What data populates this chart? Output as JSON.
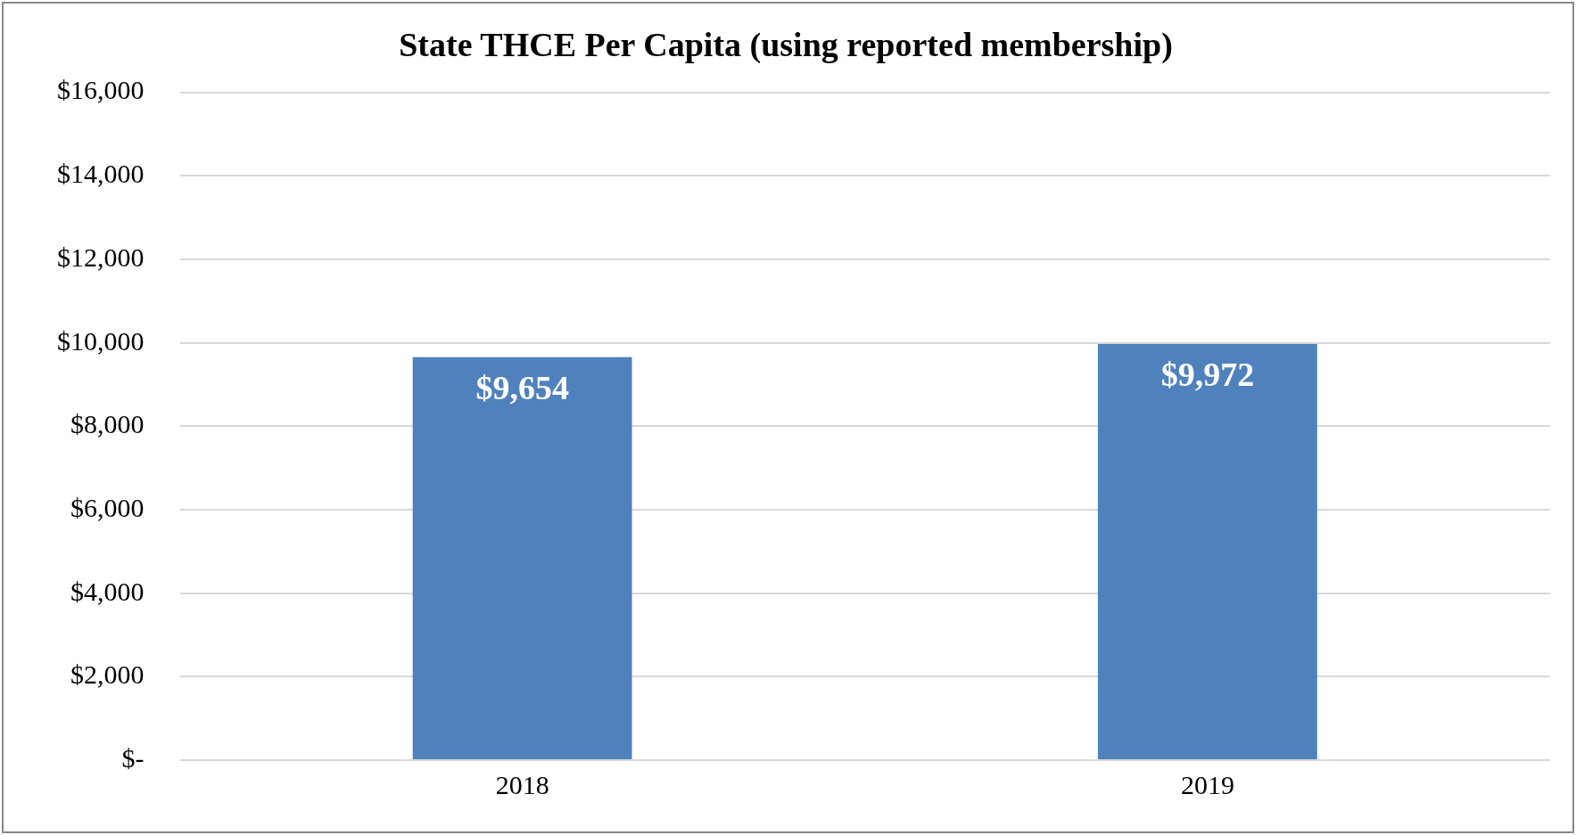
{
  "chart_data": {
    "type": "bar",
    "title": "State THCE Per Capita (using reported membership)",
    "categories": [
      "2018",
      "2019"
    ],
    "values": [
      9654,
      9972
    ],
    "value_labels": [
      "$9,654",
      "$9,972"
    ],
    "color": "#4f81bd",
    "ylim": [
      0,
      16000
    ],
    "yticks": [
      {
        "value": 0,
        "label": "$-"
      },
      {
        "value": 2000,
        "label": "$2,000"
      },
      {
        "value": 4000,
        "label": "$4,000"
      },
      {
        "value": 6000,
        "label": "$6,000"
      },
      {
        "value": 8000,
        "label": "$8,000"
      },
      {
        "value": 10000,
        "label": "$10,000"
      },
      {
        "value": 12000,
        "label": "$12,000"
      },
      {
        "value": 14000,
        "label": "$14,000"
      },
      {
        "value": 16000,
        "label": "$16,000"
      }
    ],
    "grid": "y",
    "legend": false
  }
}
